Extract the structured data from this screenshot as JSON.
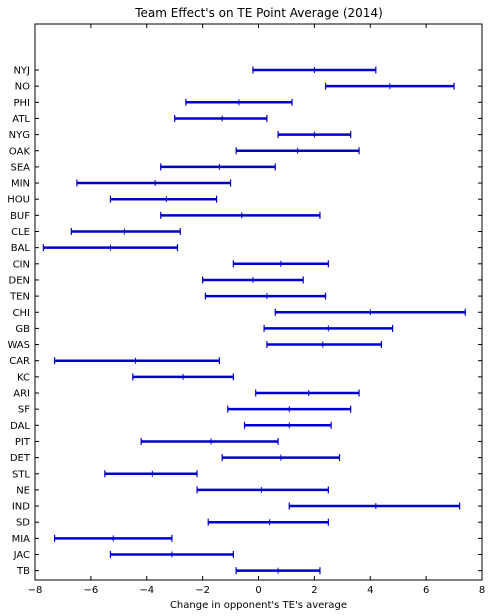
{
  "chart_data": {
    "type": "errorbar",
    "title": "Team Effect's on TE Point Average (2014)",
    "xlabel": "Change in opponent's TE's average",
    "ylabel": "",
    "xlim": [
      -8,
      8
    ],
    "xticks": [
      -8,
      -6,
      -4,
      -2,
      0,
      2,
      4,
      6,
      8
    ],
    "grid": false,
    "color": "#0000cc",
    "teams": [
      {
        "team": "NYJ",
        "low": -0.2,
        "mean": 2.0,
        "high": 4.2
      },
      {
        "team": "NO",
        "low": 2.4,
        "mean": 4.7,
        "high": 7.0
      },
      {
        "team": "PHI",
        "low": -2.6,
        "mean": -0.7,
        "high": 1.2
      },
      {
        "team": "ATL",
        "low": -3.0,
        "mean": -1.3,
        "high": 0.3
      },
      {
        "team": "NYG",
        "low": 0.7,
        "mean": 2.0,
        "high": 3.3
      },
      {
        "team": "OAK",
        "low": -0.8,
        "mean": 1.4,
        "high": 3.6
      },
      {
        "team": "SEA",
        "low": -3.5,
        "mean": -1.4,
        "high": 0.6
      },
      {
        "team": "MIN",
        "low": -6.5,
        "mean": -3.7,
        "high": -1.0
      },
      {
        "team": "HOU",
        "low": -5.3,
        "mean": -3.3,
        "high": -1.5
      },
      {
        "team": "BUF",
        "low": -3.5,
        "mean": -0.6,
        "high": 2.2
      },
      {
        "team": "CLE",
        "low": -6.7,
        "mean": -4.8,
        "high": -2.8
      },
      {
        "team": "BAL",
        "low": -7.7,
        "mean": -5.3,
        "high": -2.9
      },
      {
        "team": "CIN",
        "low": -0.9,
        "mean": 0.8,
        "high": 2.5
      },
      {
        "team": "DEN",
        "low": -2.0,
        "mean": -0.2,
        "high": 1.6
      },
      {
        "team": "TEN",
        "low": -1.9,
        "mean": 0.3,
        "high": 2.4
      },
      {
        "team": "CHI",
        "low": 0.6,
        "mean": 4.0,
        "high": 7.4
      },
      {
        "team": "GB",
        "low": 0.2,
        "mean": 2.5,
        "high": 4.8
      },
      {
        "team": "WAS",
        "low": 0.3,
        "mean": 2.3,
        "high": 4.4
      },
      {
        "team": "CAR",
        "low": -7.3,
        "mean": -4.4,
        "high": -1.4
      },
      {
        "team": "KC",
        "low": -4.5,
        "mean": -2.7,
        "high": -0.9
      },
      {
        "team": "ARI",
        "low": -0.1,
        "mean": 1.8,
        "high": 3.6
      },
      {
        "team": "SF",
        "low": -1.1,
        "mean": 1.1,
        "high": 3.3
      },
      {
        "team": "DAL",
        "low": -0.5,
        "mean": 1.1,
        "high": 2.6
      },
      {
        "team": "PIT",
        "low": -4.2,
        "mean": -1.7,
        "high": 0.7
      },
      {
        "team": "DET",
        "low": -1.3,
        "mean": 0.8,
        "high": 2.9
      },
      {
        "team": "STL",
        "low": -5.5,
        "mean": -3.8,
        "high": -2.2
      },
      {
        "team": "NE",
        "low": -2.2,
        "mean": 0.1,
        "high": 2.5
      },
      {
        "team": "IND",
        "low": 1.1,
        "mean": 4.2,
        "high": 7.2
      },
      {
        "team": "SD",
        "low": -1.8,
        "mean": 0.4,
        "high": 2.5
      },
      {
        "team": "MIA",
        "low": -7.3,
        "mean": -5.2,
        "high": -3.1
      },
      {
        "team": "JAC",
        "low": -5.3,
        "mean": -3.1,
        "high": -0.9
      },
      {
        "team": "TB",
        "low": -0.8,
        "mean": 0.7,
        "high": 2.2
      }
    ]
  }
}
